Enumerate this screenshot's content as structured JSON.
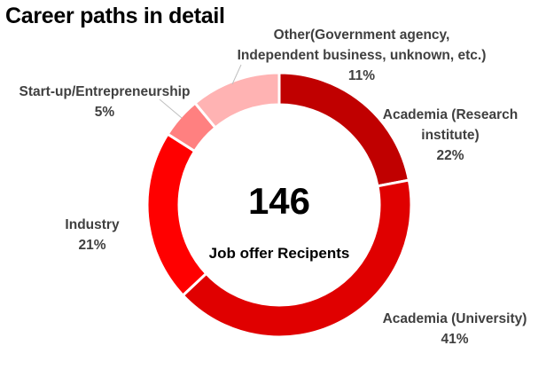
{
  "title": "Career paths in detail",
  "center": {
    "value": "146",
    "label": "Job offer Recipents"
  },
  "labels": [
    {
      "name": "Academia (Research institute)",
      "line1": "Academia (Research",
      "line2": "institute)",
      "pct": "22%"
    },
    {
      "name": "Academia (University)",
      "line1": "Academia (University)",
      "pct": "41%"
    },
    {
      "name": "Industry",
      "line1": "Industry",
      "pct": "21%"
    },
    {
      "name": "Start-up/Entrepreneurship",
      "line1": "Start-up/Entrepreneurship",
      "pct": "5%"
    },
    {
      "name": "Other",
      "line1": "Other(Government agency,",
      "line2": "Independent business, unknown, etc.)",
      "pct": "11%"
    }
  ],
  "chart_data": {
    "type": "pie",
    "subtype": "donut",
    "title": "Career paths in detail",
    "center_text": "146 Job offer Recipents",
    "total": 146,
    "categories": [
      "Academia (Research institute)",
      "Academia (University)",
      "Industry",
      "Start-up/Entrepreneurship",
      "Other(Government agency, Independent business, unknown, etc.)"
    ],
    "values": [
      22,
      41,
      21,
      5,
      11
    ],
    "unit": "%",
    "colors": [
      "#C00000",
      "#E00000",
      "#FF0000",
      "#FF8080",
      "#FFB3B3"
    ]
  }
}
